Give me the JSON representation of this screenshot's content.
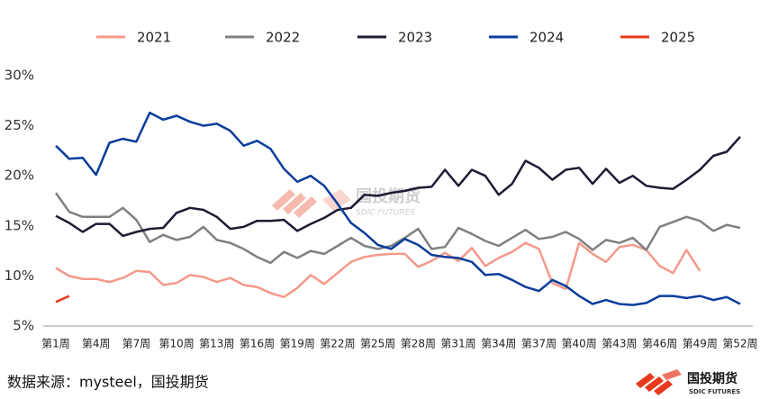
{
  "chart_data": {
    "type": "line",
    "categories": [
      "第1周",
      null,
      null,
      "第4周",
      null,
      null,
      "第7周",
      null,
      null,
      "第10周",
      null,
      null,
      "第13周",
      null,
      null,
      "第16周",
      null,
      null,
      "第19周",
      null,
      null,
      "第22周",
      null,
      null,
      "第25周",
      null,
      null,
      "第28周",
      null,
      null,
      "第31周",
      null,
      null,
      "第34周",
      null,
      null,
      "第37周",
      null,
      null,
      "第40周",
      null,
      null,
      "第43周",
      null,
      null,
      "第46周",
      null,
      null,
      "第49周",
      null,
      null,
      "第52周"
    ],
    "series": [
      {
        "name": "2021",
        "color": "#f4998a",
        "values": [
          10.8,
          10.0,
          9.7,
          9.7,
          9.4,
          9.8,
          10.5,
          10.4,
          9.1,
          9.3,
          10.1,
          9.9,
          9.4,
          9.8,
          9.1,
          8.9,
          8.3,
          7.9,
          8.8,
          10.1,
          9.2,
          10.3,
          11.4,
          11.9,
          12.1,
          12.2,
          12.2,
          10.9,
          11.5,
          12.3,
          11.5,
          12.8,
          11.0,
          11.8,
          12.4,
          13.3,
          12.7,
          9.3,
          8.7,
          13.3,
          12.2,
          11.4,
          12.9,
          13.1,
          12.6,
          11.0,
          10.3,
          12.6,
          10.5,
          null,
          null,
          null
        ]
      },
      {
        "name": "2022",
        "color": "#808080",
        "values": [
          18.3,
          16.4,
          15.9,
          15.9,
          15.9,
          16.8,
          15.6,
          13.4,
          14.1,
          13.6,
          13.9,
          14.9,
          13.6,
          13.3,
          12.7,
          11.9,
          11.3,
          12.4,
          11.8,
          12.5,
          12.2,
          13.0,
          13.8,
          13.0,
          12.7,
          13.0,
          13.8,
          14.7,
          12.7,
          12.9,
          14.8,
          14.2,
          13.5,
          13.0,
          13.8,
          14.6,
          13.7,
          13.9,
          14.4,
          13.7,
          12.6,
          13.6,
          13.3,
          13.8,
          12.6,
          14.9,
          15.4,
          15.9,
          15.5,
          14.5,
          15.1,
          14.8
        ]
      },
      {
        "name": "2023",
        "color": "#1f1a33",
        "values": [
          16.0,
          15.3,
          14.4,
          15.2,
          15.2,
          14.0,
          14.4,
          14.7,
          14.8,
          16.3,
          16.8,
          16.6,
          15.9,
          14.7,
          14.9,
          15.5,
          15.5,
          15.6,
          14.5,
          15.2,
          15.8,
          16.6,
          16.8,
          18.1,
          18.0,
          18.3,
          18.5,
          18.8,
          18.9,
          20.6,
          19.0,
          20.6,
          20.0,
          18.1,
          19.2,
          21.5,
          20.8,
          19.6,
          20.6,
          20.8,
          19.2,
          20.7,
          19.3,
          20.0,
          19.0,
          18.8,
          18.7,
          19.6,
          20.6,
          22.0,
          22.4,
          23.9
        ]
      },
      {
        "name": "2024",
        "color": "#0a3d9c",
        "values": [
          23.0,
          21.7,
          21.8,
          20.1,
          23.3,
          23.7,
          23.4,
          26.3,
          25.6,
          26.0,
          25.4,
          25.0,
          25.2,
          24.5,
          23.0,
          23.5,
          22.7,
          20.7,
          19.4,
          20.0,
          19.0,
          17.2,
          15.3,
          14.3,
          13.1,
          12.7,
          13.7,
          13.1,
          12.1,
          11.9,
          11.8,
          11.4,
          10.1,
          10.2,
          9.6,
          8.9,
          8.5,
          9.6,
          9.0,
          8.0,
          7.2,
          7.6,
          7.2,
          7.1,
          7.3,
          8.0,
          8.0,
          7.8,
          8.0,
          7.6,
          7.9,
          7.2
        ]
      },
      {
        "name": "2025",
        "color": "#e8391d",
        "values": [
          7.4,
          8.0,
          null,
          null,
          null,
          null,
          null,
          null,
          null,
          null,
          null,
          null,
          null,
          null,
          null,
          null,
          null,
          null,
          null,
          null,
          null,
          null,
          null,
          null,
          null,
          null,
          null,
          null,
          null,
          null,
          null,
          null,
          null,
          null,
          null,
          null,
          null,
          null,
          null,
          null,
          null,
          null,
          null,
          null,
          null,
          null,
          null,
          null,
          null,
          null,
          null,
          null
        ]
      }
    ],
    "ylim": [
      5,
      30
    ],
    "yticks": [
      {
        "value": 5,
        "label": "5%"
      },
      {
        "value": 10,
        "label": "10%"
      },
      {
        "value": 15,
        "label": "15%"
      },
      {
        "value": 20,
        "label": "20%"
      },
      {
        "value": 25,
        "label": "25%"
      },
      {
        "value": 30,
        "label": "30%"
      }
    ],
    "legend": "top",
    "source": "数据来源：mysteel，国投期货",
    "watermark": {
      "name": "国投期货",
      "sub": "SDIC FUTURES"
    }
  }
}
